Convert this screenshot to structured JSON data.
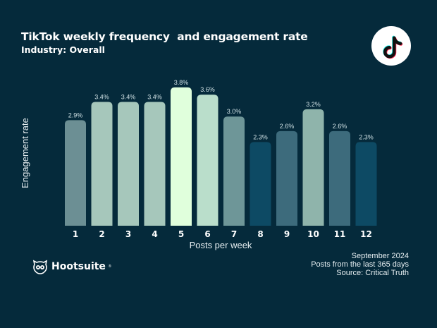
{
  "header": {
    "title": "TikTok weekly frequency  and engagement rate",
    "subtitle": "Industry: Overall"
  },
  "brand": {
    "platform_icon": "tiktok-icon",
    "logo_icon": "hootsuite-owl-icon",
    "logo_text": "Hootsuite",
    "logo_mark": "®"
  },
  "footer": {
    "lines": [
      "September 2024",
      "Posts from the last 365 days",
      "Source: Critical Truth"
    ]
  },
  "colors": {
    "background": "#052a3b",
    "text": "#ffffff",
    "label": "#cfe0e4"
  },
  "chart_data": {
    "type": "bar",
    "title": "TikTok weekly frequency  and engagement rate",
    "subtitle": "Industry: Overall",
    "xlabel": "Posts per week",
    "ylabel": "Engagement rate",
    "categories": [
      "1",
      "2",
      "3",
      "4",
      "5",
      "6",
      "7",
      "8",
      "9",
      "10",
      "11",
      "12"
    ],
    "values": [
      2.9,
      3.4,
      3.4,
      3.4,
      3.8,
      3.6,
      3.0,
      2.3,
      2.6,
      3.2,
      2.6,
      2.3
    ],
    "value_labels": [
      "2.9%",
      "3.4%",
      "3.4%",
      "3.4%",
      "3.8%",
      "3.6%",
      "3.0%",
      "2.3%",
      "2.6%",
      "3.2%",
      "2.6%",
      "2.3%"
    ],
    "bar_colors": [
      "#6c8f94",
      "#a6c7bb",
      "#a6c7bb",
      "#a6c7bb",
      "#e0ffdc",
      "#badecb",
      "#6e9698",
      "#0d4a64",
      "#3d6b7c",
      "#8fb4ab",
      "#3d6b7c",
      "#0d4a64"
    ],
    "value_unit": "%",
    "ylim": [
      0,
      3.8
    ],
    "grid": false,
    "legend": "none"
  }
}
